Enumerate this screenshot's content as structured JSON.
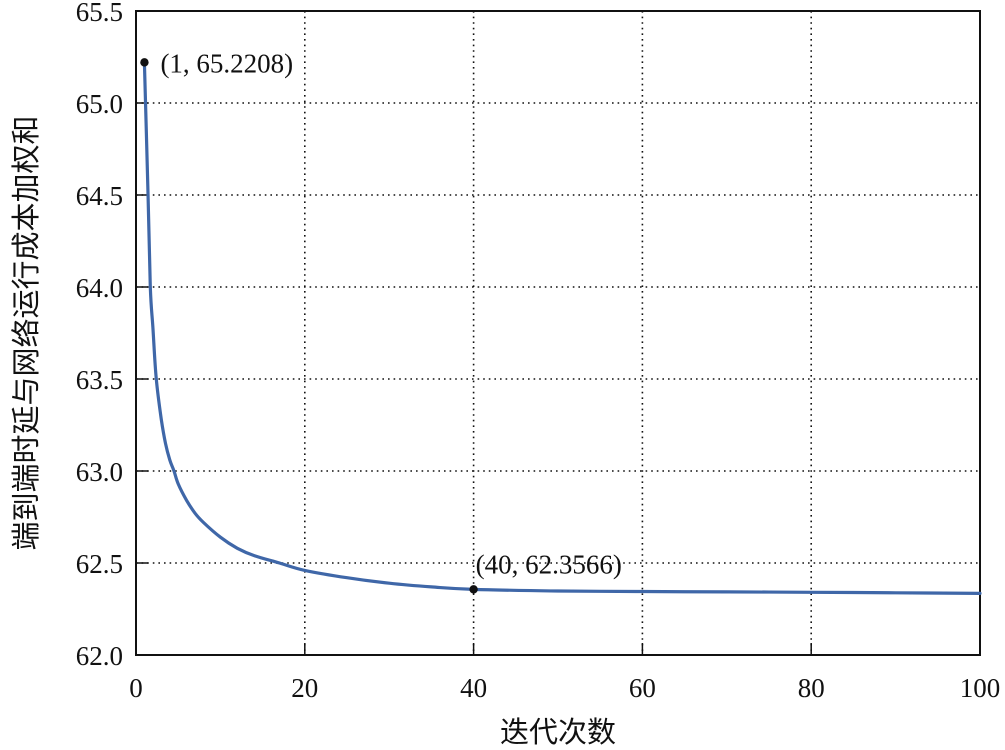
{
  "chart_data": {
    "type": "line",
    "title": "",
    "xlabel": "迭代次数",
    "ylabel": "端到端时延与网络运行成本加权和",
    "xlim": [
      0,
      100
    ],
    "ylim": [
      62.0,
      65.5
    ],
    "xticks": [
      0,
      20,
      40,
      60,
      80,
      100
    ],
    "xtick_labels": [
      "0",
      "20",
      "40",
      "60",
      "80",
      "100"
    ],
    "yticks": [
      62.0,
      62.5,
      63.0,
      63.5,
      64.0,
      64.5,
      65.0,
      65.5
    ],
    "ytick_labels": [
      "62.0",
      "62.5",
      "63.0",
      "63.5",
      "64.0",
      "64.5",
      "65.0",
      "65.5"
    ],
    "grid": true,
    "grid_style": "dotted",
    "legend": null,
    "series": [
      {
        "name": "加权和",
        "color": "#3f67a8",
        "x": [
          1,
          1.4,
          1.7,
          2.0,
          2.4,
          3,
          3.5,
          4,
          4.5,
          5,
          6,
          7,
          8,
          10,
          12,
          14,
          17,
          20,
          25,
          30,
          35,
          40,
          50,
          60,
          70,
          80,
          90,
          100
        ],
        "y": [
          65.2208,
          64.55,
          64.0,
          63.78,
          63.5,
          63.28,
          63.15,
          63.06,
          63.0,
          62.93,
          62.84,
          62.77,
          62.72,
          62.64,
          62.58,
          62.54,
          62.5,
          62.46,
          62.42,
          62.39,
          62.37,
          62.3566,
          62.348,
          62.345,
          62.343,
          62.341,
          62.338,
          62.335
        ]
      }
    ],
    "annotations": [
      {
        "x": 1,
        "y": 65.2208,
        "text": "(1, 65.2208)"
      },
      {
        "x": 40,
        "y": 62.3566,
        "text": "(40, 62.3566)"
      }
    ]
  }
}
